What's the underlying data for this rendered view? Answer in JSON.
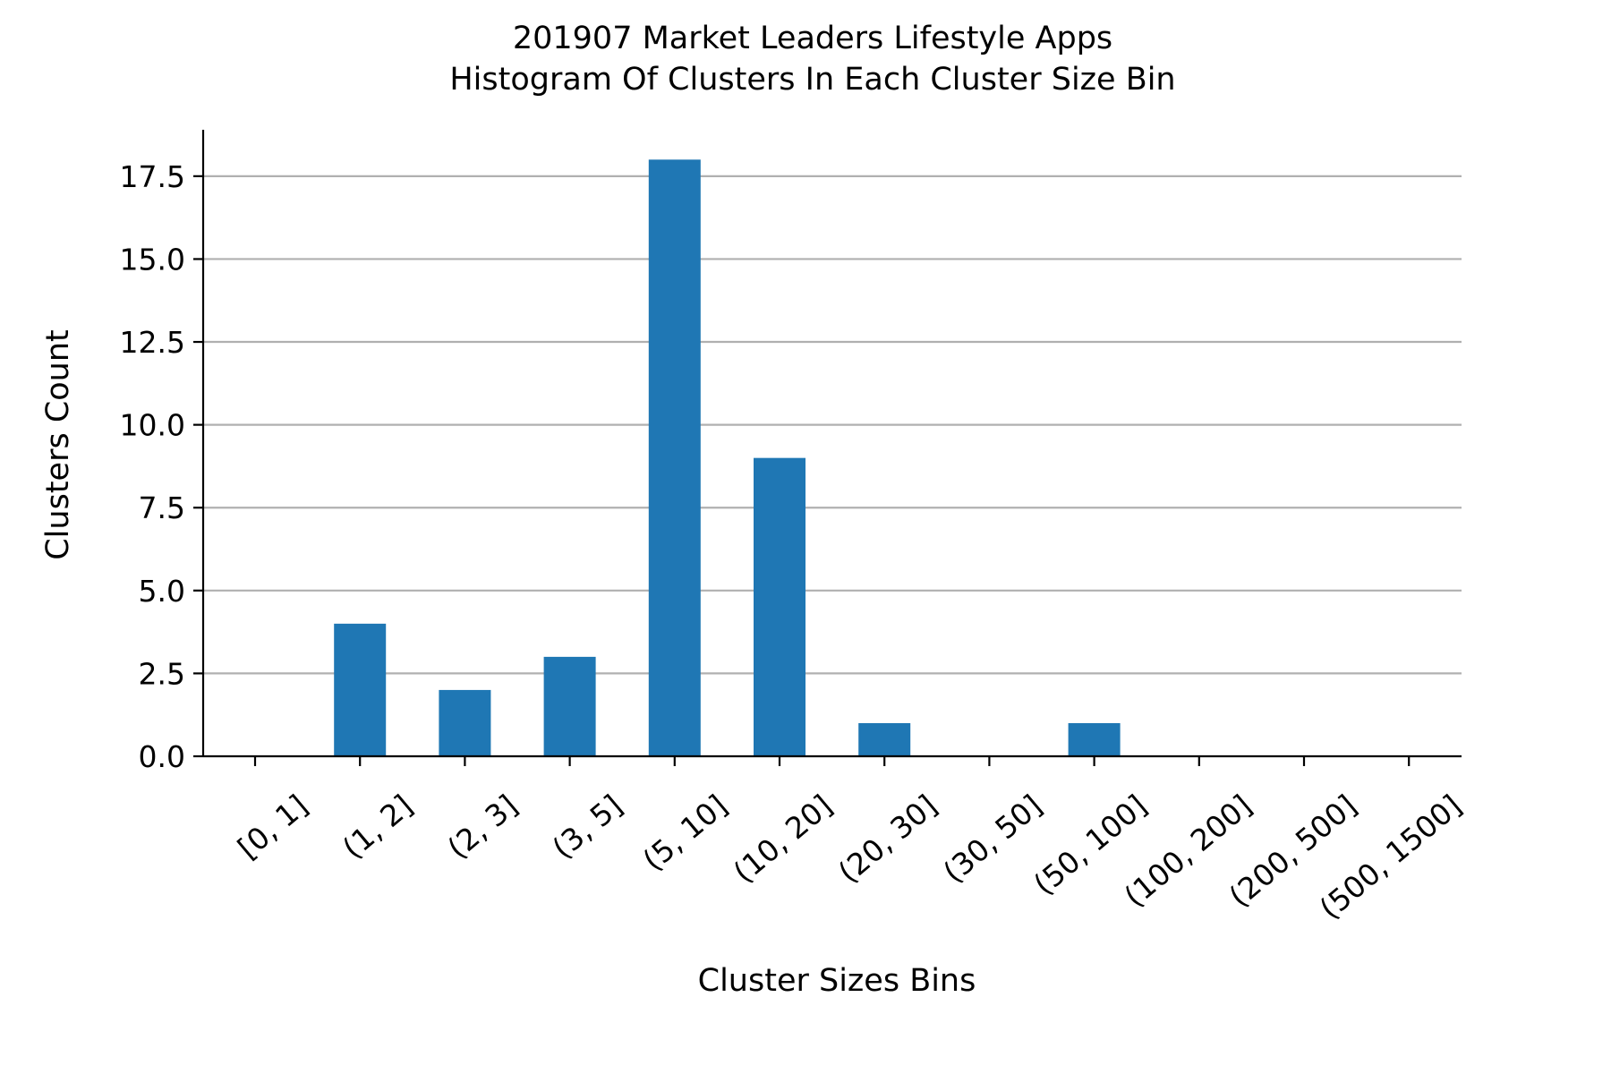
{
  "chart_data": {
    "type": "bar",
    "title": [
      "201907 Market Leaders Lifestyle Apps",
      "Histogram Of Clusters In Each Cluster Size Bin"
    ],
    "xlabel": "Cluster Sizes Bins",
    "ylabel": "Clusters Count",
    "categories": [
      "[0, 1]",
      "(1, 2]",
      "(2, 3]",
      "(3, 5]",
      "(5, 10]",
      "(10, 20]",
      "(20, 30]",
      "(30, 50]",
      "(50, 100]",
      "(100, 200]",
      "(200, 500]",
      "(500, 1500]"
    ],
    "values": [
      0,
      4,
      2,
      3,
      18,
      9,
      1,
      0,
      1,
      0,
      0,
      0
    ],
    "ylim": [
      0,
      18.9
    ],
    "yticks": [
      0.0,
      2.5,
      5.0,
      7.5,
      10.0,
      12.5,
      15.0,
      17.5
    ],
    "ytick_labels": [
      "0.0",
      "2.5",
      "5.0",
      "7.5",
      "10.0",
      "12.5",
      "15.0",
      "17.5"
    ],
    "grid": "y",
    "bar_color": "#1f77b4",
    "grid_color": "#b0b0b0",
    "xtick_rotation_deg": 40
  }
}
